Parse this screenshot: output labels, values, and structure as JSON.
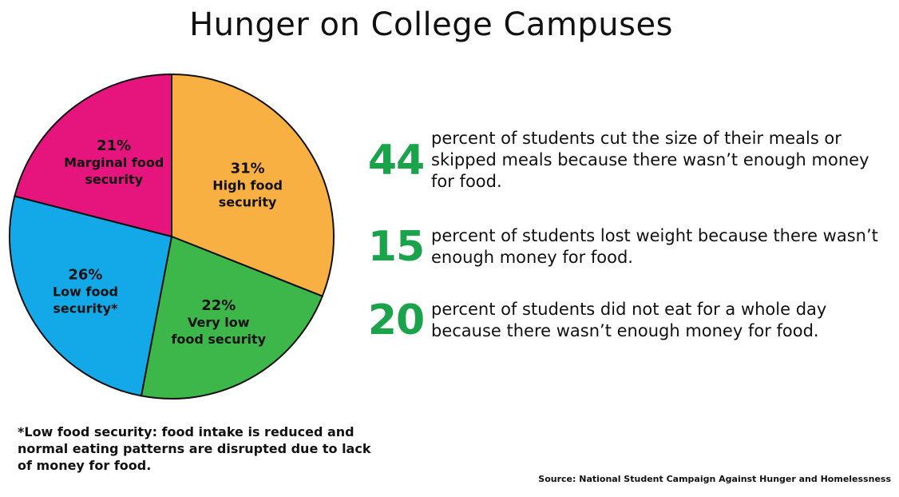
{
  "title": "Hunger on College Campuses",
  "chart_data": {
    "type": "pie",
    "title": "",
    "slices": [
      {
        "pct_label": "31%",
        "label_lines": [
          "High food",
          "security"
        ],
        "value": 31,
        "color": "#f9b043"
      },
      {
        "pct_label": "22%",
        "label_lines": [
          "Very low",
          "food security"
        ],
        "value": 22,
        "color": "#3db74a"
      },
      {
        "pct_label": "26%",
        "label_lines": [
          "Low food",
          "security*"
        ],
        "value": 26,
        "color": "#13a9e8"
      },
      {
        "pct_label": "21%",
        "label_lines": [
          "Marginal food",
          "security"
        ],
        "value": 21,
        "color": "#e6157d"
      }
    ],
    "start": "12 o'clock",
    "direction": "clockwise",
    "outline_color": "#111111"
  },
  "stats": [
    {
      "number": "44",
      "text": "percent of students cut the size of their meals or skipped meals because there wasn’t enough money for food."
    },
    {
      "number": "15",
      "text": "percent of students lost weight because there wasn’t enough money for food."
    },
    {
      "number": "20",
      "text": "percent of students did not eat for a whole day because there wasn’t enough money for food."
    }
  ],
  "footnote": "*Low food security: food intake is reduced and normal eating patterns are disrupted due to lack of money for food.",
  "source": "Source: National Student Campaign Against Hunger and Homelessness",
  "colors": {
    "stat_number": "#1aa34a"
  }
}
